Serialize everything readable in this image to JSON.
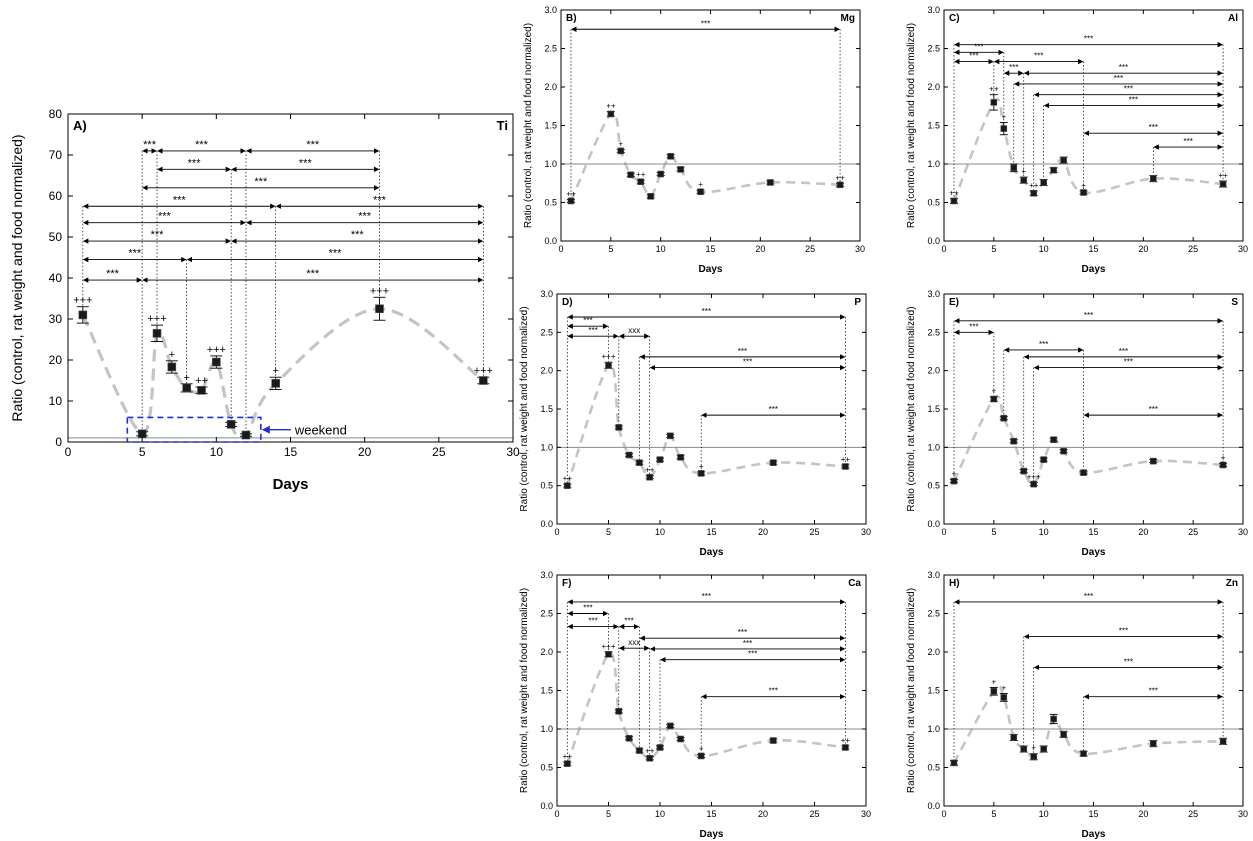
{
  "figure": {
    "weekend_label": "weekend",
    "weekend_box": {
      "x_range": [
        4,
        13
      ],
      "y_range": [
        0,
        6
      ]
    },
    "colors": {
      "curve": "#c4c4c4",
      "reference": "#8a8a8a",
      "marker": "#1a1a1a",
      "weekend_box": "#1f2fd6",
      "axis": "#000000"
    }
  },
  "chart_data": [
    {
      "id": "A",
      "type": "scatter",
      "label": "A)",
      "element": "Ti",
      "xlabel": "Days",
      "ylabel": "Ratio (control, rat weight and food normalized)",
      "xlim": [
        0,
        30
      ],
      "ylim": [
        0,
        80
      ],
      "xticks": [
        0,
        5,
        10,
        15,
        20,
        25,
        30
      ],
      "yticks": [
        0,
        10,
        20,
        30,
        40,
        50,
        60,
        70,
        80
      ],
      "reference": 1,
      "points": [
        {
          "x": 1,
          "y": 31,
          "err": 2,
          "mark": "+++"
        },
        {
          "x": 5,
          "y": 2,
          "err": 0.5,
          "mark": ""
        },
        {
          "x": 6,
          "y": 26.5,
          "err": 2,
          "mark": "+++"
        },
        {
          "x": 7,
          "y": 18.3,
          "err": 1.5,
          "mark": "+"
        },
        {
          "x": 8,
          "y": 13.2,
          "err": 1,
          "mark": "+"
        },
        {
          "x": 9,
          "y": 12.6,
          "err": 0.8,
          "mark": "++"
        },
        {
          "x": 10,
          "y": 19.5,
          "err": 1.5,
          "mark": "+++"
        },
        {
          "x": 11,
          "y": 4.3,
          "err": 0.5,
          "mark": ""
        },
        {
          "x": 12,
          "y": 1.7,
          "err": 0.3,
          "mark": ""
        },
        {
          "x": 14,
          "y": 14.3,
          "err": 1.5,
          "mark": "+"
        },
        {
          "x": 21,
          "y": 32.5,
          "err": 2.8,
          "mark": "+++"
        },
        {
          "x": 28,
          "y": 15,
          "err": 0.8,
          "mark": "+++"
        }
      ],
      "brackets": [
        {
          "x1": 5,
          "x2": 6,
          "y": 71,
          "label": "***"
        },
        {
          "x1": 6,
          "x2": 12,
          "y": 71,
          "label": "***"
        },
        {
          "x1": 12,
          "x2": 21,
          "y": 71,
          "label": "***"
        },
        {
          "x1": 6,
          "x2": 11,
          "y": 66.5,
          "label": "***"
        },
        {
          "x1": 11,
          "x2": 21,
          "y": 66.5,
          "label": "***"
        },
        {
          "x1": 5,
          "x2": 21,
          "y": 62,
          "label": "***"
        },
        {
          "x1": 1,
          "x2": 14,
          "y": 57.5,
          "label": "***"
        },
        {
          "x1": 14,
          "x2": 28,
          "y": 57.5,
          "label": "***"
        },
        {
          "x1": 1,
          "x2": 12,
          "y": 53.5,
          "label": "***"
        },
        {
          "x1": 12,
          "x2": 28,
          "y": 53.5,
          "label": "***"
        },
        {
          "x1": 1,
          "x2": 11,
          "y": 49,
          "label": "***"
        },
        {
          "x1": 11,
          "x2": 28,
          "y": 49,
          "label": "***"
        },
        {
          "x1": 1,
          "x2": 8,
          "y": 44.5,
          "label": "***"
        },
        {
          "x1": 8,
          "x2": 28,
          "y": 44.5,
          "label": "***"
        },
        {
          "x1": 1,
          "x2": 5,
          "y": 39.5,
          "label": "***"
        },
        {
          "x1": 5,
          "x2": 28,
          "y": 39.5,
          "label": "***"
        }
      ]
    },
    {
      "id": "B",
      "type": "scatter",
      "label": "B)",
      "element": "Mg",
      "xlabel": "Days",
      "ylabel": "Ratio (control, rat weight and food normalized)",
      "xlim": [
        0,
        30
      ],
      "ylim": [
        0,
        3
      ],
      "xticks": [
        0,
        5,
        10,
        15,
        20,
        25,
        30
      ],
      "yticks": [
        0.0,
        0.5,
        1.0,
        1.5,
        2.0,
        2.5,
        3.0
      ],
      "reference": 1,
      "points": [
        {
          "x": 1,
          "y": 0.52,
          "err": 0.02,
          "mark": "++"
        },
        {
          "x": 5,
          "y": 1.65,
          "err": 0.03,
          "mark": "++"
        },
        {
          "x": 6,
          "y": 1.17,
          "err": 0.02,
          "mark": "+"
        },
        {
          "x": 7,
          "y": 0.86,
          "err": 0.02,
          "mark": ""
        },
        {
          "x": 8,
          "y": 0.77,
          "err": 0.02,
          "mark": "++"
        },
        {
          "x": 9,
          "y": 0.58,
          "err": 0.02,
          "mark": ""
        },
        {
          "x": 10,
          "y": 0.87,
          "err": 0.02,
          "mark": ""
        },
        {
          "x": 11,
          "y": 1.1,
          "err": 0.02,
          "mark": ""
        },
        {
          "x": 12,
          "y": 0.93,
          "err": 0.02,
          "mark": ""
        },
        {
          "x": 14,
          "y": 0.64,
          "err": 0.02,
          "mark": "+"
        },
        {
          "x": 21,
          "y": 0.76,
          "err": 0.02,
          "mark": ""
        },
        {
          "x": 28,
          "y": 0.73,
          "err": 0.02,
          "mark": "++"
        }
      ],
      "brackets": [
        {
          "x1": 1,
          "x2": 28,
          "y": 2.75,
          "label": "***"
        }
      ]
    },
    {
      "id": "C",
      "type": "scatter",
      "label": "C)",
      "element": "Al",
      "xlabel": "Days",
      "ylabel": "Ratio (control, rat weight and food normalized)",
      "xlim": [
        0,
        30
      ],
      "ylim": [
        0,
        3
      ],
      "xticks": [
        0,
        5,
        10,
        15,
        20,
        25,
        30
      ],
      "yticks": [
        0.0,
        0.5,
        1.0,
        1.5,
        2.0,
        2.5,
        3.0
      ],
      "reference": 1,
      "points": [
        {
          "x": 1,
          "y": 0.52,
          "err": 0.03,
          "mark": "++"
        },
        {
          "x": 5,
          "y": 1.8,
          "err": 0.1,
          "mark": "++"
        },
        {
          "x": 6,
          "y": 1.46,
          "err": 0.08,
          "mark": "+"
        },
        {
          "x": 7,
          "y": 0.95,
          "err": 0.05,
          "mark": ""
        },
        {
          "x": 8,
          "y": 0.79,
          "err": 0.04,
          "mark": "+"
        },
        {
          "x": 9,
          "y": 0.62,
          "err": 0.03,
          "mark": "++"
        },
        {
          "x": 10,
          "y": 0.76,
          "err": 0.04,
          "mark": ""
        },
        {
          "x": 11,
          "y": 0.92,
          "err": 0.03,
          "mark": ""
        },
        {
          "x": 12,
          "y": 1.05,
          "err": 0.04,
          "mark": ""
        },
        {
          "x": 14,
          "y": 0.63,
          "err": 0.02,
          "mark": "+"
        },
        {
          "x": 21,
          "y": 0.81,
          "err": 0.04,
          "mark": ""
        },
        {
          "x": 28,
          "y": 0.74,
          "err": 0.04,
          "mark": "++"
        }
      ],
      "brackets": [
        {
          "x1": 1,
          "x2": 28,
          "y": 2.55,
          "label": "***"
        },
        {
          "x1": 1,
          "x2": 6,
          "y": 2.45,
          "label": "***"
        },
        {
          "x1": 1,
          "x2": 5,
          "y": 2.33,
          "label": "***"
        },
        {
          "x1": 5,
          "x2": 14,
          "y": 2.33,
          "label": "***"
        },
        {
          "x1": 6,
          "x2": 8,
          "y": 2.18,
          "label": "***"
        },
        {
          "x1": 8,
          "x2": 28,
          "y": 2.18,
          "label": "***"
        },
        {
          "x1": 7,
          "x2": 28,
          "y": 2.04,
          "label": "***"
        },
        {
          "x1": 9,
          "x2": 28,
          "y": 1.9,
          "label": "***"
        },
        {
          "x1": 10,
          "x2": 28,
          "y": 1.76,
          "label": "***"
        },
        {
          "x1": 14,
          "x2": 28,
          "y": 1.4,
          "label": "***"
        },
        {
          "x1": 21,
          "x2": 28,
          "y": 1.22,
          "label": "***"
        }
      ]
    },
    {
      "id": "D",
      "type": "scatter",
      "label": "D)",
      "element": "P",
      "xlabel": "Days",
      "ylabel": "Ratio (control, rat weight and food normalized)",
      "xlim": [
        0,
        30
      ],
      "ylim": [
        0,
        3
      ],
      "xticks": [
        0,
        5,
        10,
        15,
        20,
        25,
        30
      ],
      "yticks": [
        0.0,
        0.5,
        1.0,
        1.5,
        2.0,
        2.5,
        3.0
      ],
      "reference": 1,
      "points": [
        {
          "x": 1,
          "y": 0.5,
          "err": 0.02,
          "mark": "++"
        },
        {
          "x": 5,
          "y": 2.07,
          "err": 0.04,
          "mark": "+++"
        },
        {
          "x": 6,
          "y": 1.26,
          "err": 0.02,
          "mark": ""
        },
        {
          "x": 7,
          "y": 0.9,
          "err": 0.02,
          "mark": ""
        },
        {
          "x": 8,
          "y": 0.8,
          "err": 0.02,
          "mark": ""
        },
        {
          "x": 9,
          "y": 0.61,
          "err": 0.02,
          "mark": "++"
        },
        {
          "x": 10,
          "y": 0.84,
          "err": 0.02,
          "mark": ""
        },
        {
          "x": 11,
          "y": 1.15,
          "err": 0.02,
          "mark": ""
        },
        {
          "x": 12,
          "y": 0.87,
          "err": 0.02,
          "mark": ""
        },
        {
          "x": 14,
          "y": 0.66,
          "err": 0.02,
          "mark": "+"
        },
        {
          "x": 21,
          "y": 0.8,
          "err": 0.02,
          "mark": ""
        },
        {
          "x": 28,
          "y": 0.75,
          "err": 0.02,
          "mark": "++"
        }
      ],
      "brackets": [
        {
          "x1": 1,
          "x2": 28,
          "y": 2.7,
          "label": "***"
        },
        {
          "x1": 1,
          "x2": 5,
          "y": 2.58,
          "label": "***"
        },
        {
          "x1": 1,
          "x2": 6,
          "y": 2.45,
          "label": "***"
        },
        {
          "x1": 6,
          "x2": 9,
          "y": 2.45,
          "label": "xxx"
        },
        {
          "x1": 8,
          "x2": 28,
          "y": 2.18,
          "label": "***"
        },
        {
          "x1": 9,
          "x2": 28,
          "y": 2.04,
          "label": "***"
        },
        {
          "x1": 14,
          "x2": 28,
          "y": 1.42,
          "label": "***"
        }
      ]
    },
    {
      "id": "E",
      "type": "scatter",
      "label": "E)",
      "element": "S",
      "xlabel": "Days",
      "ylabel": "Ratio (control, rat weight and food normalized)",
      "xlim": [
        0,
        30
      ],
      "ylim": [
        0,
        3
      ],
      "xticks": [
        0,
        5,
        10,
        15,
        20,
        25,
        30
      ],
      "yticks": [
        0.0,
        0.5,
        1.0,
        1.5,
        2.0,
        2.5,
        3.0
      ],
      "reference": 1,
      "points": [
        {
          "x": 1,
          "y": 0.56,
          "err": 0.02,
          "mark": "+"
        },
        {
          "x": 5,
          "y": 1.63,
          "err": 0.03,
          "mark": "+"
        },
        {
          "x": 6,
          "y": 1.38,
          "err": 0.02,
          "mark": ""
        },
        {
          "x": 7,
          "y": 1.08,
          "err": 0.02,
          "mark": ""
        },
        {
          "x": 8,
          "y": 0.69,
          "err": 0.02,
          "mark": ""
        },
        {
          "x": 9,
          "y": 0.52,
          "err": 0.02,
          "mark": "+++"
        },
        {
          "x": 10,
          "y": 0.84,
          "err": 0.02,
          "mark": ""
        },
        {
          "x": 11,
          "y": 1.1,
          "err": 0.02,
          "mark": ""
        },
        {
          "x": 12,
          "y": 0.95,
          "err": 0.02,
          "mark": ""
        },
        {
          "x": 14,
          "y": 0.67,
          "err": 0.02,
          "mark": ""
        },
        {
          "x": 21,
          "y": 0.82,
          "err": 0.02,
          "mark": ""
        },
        {
          "x": 28,
          "y": 0.77,
          "err": 0.02,
          "mark": "+"
        }
      ],
      "brackets": [
        {
          "x1": 1,
          "x2": 28,
          "y": 2.65,
          "label": "***"
        },
        {
          "x1": 1,
          "x2": 5,
          "y": 2.5,
          "label": "***"
        },
        {
          "x1": 6,
          "x2": 14,
          "y": 2.27,
          "label": "***"
        },
        {
          "x1": 8,
          "x2": 28,
          "y": 2.18,
          "label": "***"
        },
        {
          "x1": 9,
          "x2": 28,
          "y": 2.04,
          "label": "***"
        },
        {
          "x1": 14,
          "x2": 28,
          "y": 1.42,
          "label": "***"
        }
      ]
    },
    {
      "id": "F",
      "type": "scatter",
      "label": "F)",
      "element": "Ca",
      "xlabel": "Days",
      "ylabel": "Ratio (control, rat weight and food normalized)",
      "xlim": [
        0,
        30
      ],
      "ylim": [
        0,
        3
      ],
      "xticks": [
        0,
        5,
        10,
        15,
        20,
        25,
        30
      ],
      "yticks": [
        0.0,
        0.5,
        1.0,
        1.5,
        2.0,
        2.5,
        3.0
      ],
      "reference": 1,
      "points": [
        {
          "x": 1,
          "y": 0.55,
          "err": 0.02,
          "mark": "++"
        },
        {
          "x": 5,
          "y": 1.97,
          "err": 0.03,
          "mark": "+++"
        },
        {
          "x": 6,
          "y": 1.23,
          "err": 0.02,
          "mark": ""
        },
        {
          "x": 7,
          "y": 0.88,
          "err": 0.02,
          "mark": ""
        },
        {
          "x": 8,
          "y": 0.72,
          "err": 0.02,
          "mark": ""
        },
        {
          "x": 9,
          "y": 0.62,
          "err": 0.02,
          "mark": "++"
        },
        {
          "x": 10,
          "y": 0.76,
          "err": 0.02,
          "mark": ""
        },
        {
          "x": 11,
          "y": 1.04,
          "err": 0.02,
          "mark": ""
        },
        {
          "x": 12,
          "y": 0.87,
          "err": 0.02,
          "mark": ""
        },
        {
          "x": 14,
          "y": 0.65,
          "err": 0.02,
          "mark": "+"
        },
        {
          "x": 21,
          "y": 0.85,
          "err": 0.02,
          "mark": ""
        },
        {
          "x": 28,
          "y": 0.76,
          "err": 0.02,
          "mark": "++"
        }
      ],
      "brackets": [
        {
          "x1": 1,
          "x2": 28,
          "y": 2.65,
          "label": "***"
        },
        {
          "x1": 1,
          "x2": 5,
          "y": 2.5,
          "label": "***"
        },
        {
          "x1": 1,
          "x2": 6,
          "y": 2.33,
          "label": "***"
        },
        {
          "x1": 6,
          "x2": 8,
          "y": 2.33,
          "label": "***"
        },
        {
          "x1": 8,
          "x2": 28,
          "y": 2.18,
          "label": "***"
        },
        {
          "x1": 6,
          "x2": 9,
          "y": 2.05,
          "label": "xxx"
        },
        {
          "x1": 9,
          "x2": 28,
          "y": 2.04,
          "label": "***"
        },
        {
          "x1": 10,
          "x2": 28,
          "y": 1.9,
          "label": "***"
        },
        {
          "x1": 14,
          "x2": 28,
          "y": 1.42,
          "label": "***"
        }
      ]
    },
    {
      "id": "H",
      "type": "scatter",
      "label": "H)",
      "element": "Zn",
      "xlabel": "Days",
      "ylabel": "Ratio (control, rat weight and food normalized)",
      "xlim": [
        0,
        30
      ],
      "ylim": [
        0,
        3
      ],
      "xticks": [
        0,
        5,
        10,
        15,
        20,
        25,
        30
      ],
      "yticks": [
        0.0,
        0.5,
        1.0,
        1.5,
        2.0,
        2.5,
        3.0
      ],
      "reference": 1,
      "points": [
        {
          "x": 1,
          "y": 0.56,
          "err": 0.03,
          "mark": ""
        },
        {
          "x": 5,
          "y": 1.49,
          "err": 0.05,
          "mark": "+"
        },
        {
          "x": 6,
          "y": 1.41,
          "err": 0.05,
          "mark": "+"
        },
        {
          "x": 7,
          "y": 0.89,
          "err": 0.04,
          "mark": ""
        },
        {
          "x": 8,
          "y": 0.74,
          "err": 0.04,
          "mark": ""
        },
        {
          "x": 9,
          "y": 0.64,
          "err": 0.04,
          "mark": "+"
        },
        {
          "x": 10,
          "y": 0.74,
          "err": 0.04,
          "mark": ""
        },
        {
          "x": 11,
          "y": 1.13,
          "err": 0.06,
          "mark": ""
        },
        {
          "x": 12,
          "y": 0.93,
          "err": 0.04,
          "mark": ""
        },
        {
          "x": 14,
          "y": 0.68,
          "err": 0.03,
          "mark": ""
        },
        {
          "x": 21,
          "y": 0.81,
          "err": 0.04,
          "mark": ""
        },
        {
          "x": 28,
          "y": 0.84,
          "err": 0.04,
          "mark": ""
        }
      ],
      "brackets": [
        {
          "x1": 1,
          "x2": 28,
          "y": 2.65,
          "label": "***"
        },
        {
          "x1": 8,
          "x2": 28,
          "y": 2.2,
          "label": "***"
        },
        {
          "x1": 9,
          "x2": 28,
          "y": 1.8,
          "label": "***"
        },
        {
          "x1": 14,
          "x2": 28,
          "y": 1.42,
          "label": "***"
        }
      ]
    }
  ]
}
